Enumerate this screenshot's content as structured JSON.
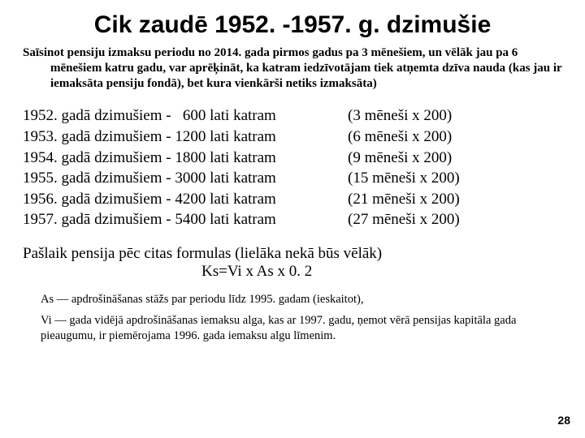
{
  "title": "Cik zaudē 1952. -1957. g. dzimušie",
  "intro": "Saīsinot pensiju izmaksu periodu no 2014. gada pirmos gadus pa 3 mēnešiem, un vēlāk jau pa 6 mēnešiem katru gadu, var aprēķināt, ka katram iedzīvotājam tiek atņemta dzīva nauda (kas jau ir iemaksāta pensiju fondā), bet kura vienkārši netiks izmaksāta)",
  "rows": [
    {
      "left": "1952. gadā dzimušiem -   600 lati katram",
      "right": "(3 mēneši x 200)"
    },
    {
      "left": "1953. gadā dzimušiem - 1200 lati katram",
      "right": "(6 mēneši x 200)"
    },
    {
      "left": "1954. gadā dzimušiem - 1800 lati katram",
      "right": "(9 mēneši x 200)"
    },
    {
      "left": "1955. gadā dzimušiem - 3000 lati katram",
      "right": "(15 mēneši x 200)"
    },
    {
      "left": "1956. gadā dzimušiem - 4200 lati katram",
      "right": "(21 mēneši x 200)"
    },
    {
      "left": "1957. gadā dzimušiem - 5400 lati katram",
      "right": "(27 mēneši x 200)"
    }
  ],
  "formula_line1": "Pašlaik pensija pēc citas formulas (lielāka nekā būs vēlāk)",
  "formula_line2": "Ks=Vi x As x 0. 2",
  "footnote1": "As — apdrošināšanas stāžs par periodu līdz 1995. gadam (ieskaitot),",
  "footnote2": "Vi — gada vidējā apdrošināšanas iemaksu alga, kas ar 1997. gadu, ņemot vērā pensijas kapitāla gada pieaugumu, ir piemērojama 1996. gada iemaksu algu līmenim.",
  "pagenum": "28"
}
